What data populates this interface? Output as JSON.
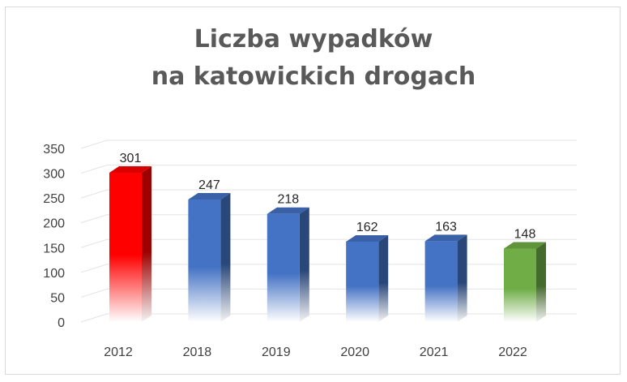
{
  "chart_data": {
    "type": "bar",
    "title_line1": "Liczba wypadków",
    "title_line2": "na katowickich drogach",
    "categories": [
      "2012",
      "2018",
      "2019",
      "2020",
      "2021",
      "2022"
    ],
    "values": [
      301,
      247,
      218,
      162,
      163,
      148
    ],
    "value_labels": [
      "301",
      "247",
      "218",
      "162",
      "163",
      "148"
    ],
    "colors": [
      "#ff0000",
      "#4472c4",
      "#4472c4",
      "#4472c4",
      "#4472c4",
      "#70ad47"
    ],
    "ylim": [
      0,
      350
    ],
    "yticks": [
      "0",
      "50",
      "100",
      "150",
      "200",
      "250",
      "300",
      "350"
    ],
    "grid": true,
    "legend": "none",
    "style": "3d-column"
  }
}
